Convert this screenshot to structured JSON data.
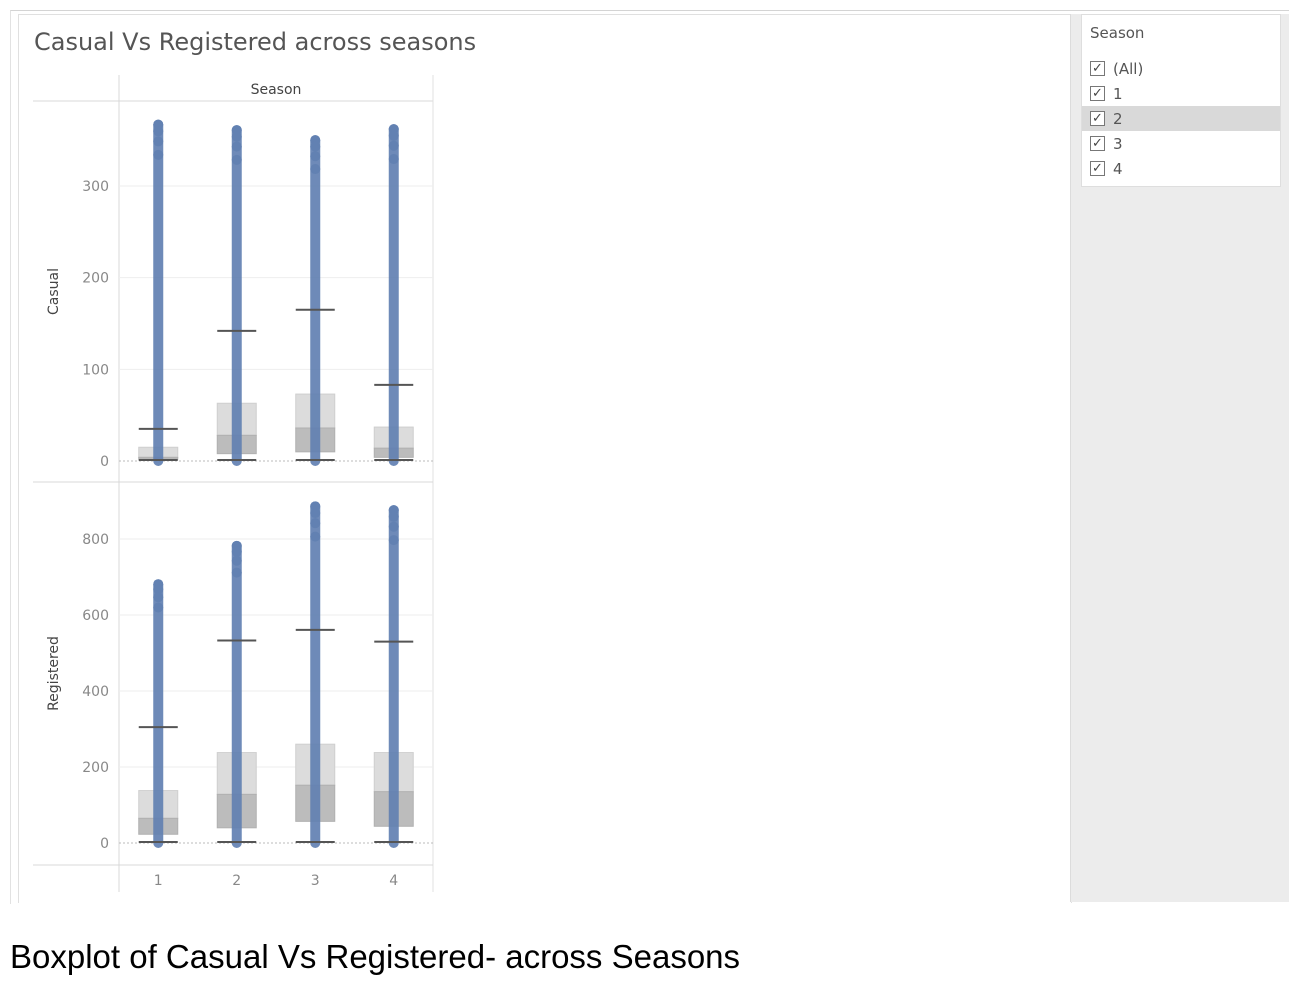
{
  "dashboard": {
    "title": "Casual Vs Registered across seasons"
  },
  "filter": {
    "title": "Season",
    "items": [
      {
        "label": "(All)",
        "checked": true,
        "selected": false
      },
      {
        "label": "1",
        "checked": true,
        "selected": false
      },
      {
        "label": "2",
        "checked": true,
        "selected": true
      },
      {
        "label": "3",
        "checked": true,
        "selected": false
      },
      {
        "label": "4",
        "checked": true,
        "selected": false
      }
    ]
  },
  "caption": "Boxplot of Casual Vs Registered- across Seasons",
  "colors": {
    "point": "#6281b2",
    "box_upper": "#dcdcdc",
    "box_lower": "#bcbcbc",
    "whisker": "#555555",
    "grid": "#eeeeee",
    "axis_text": "#888888"
  },
  "chart_data": [
    {
      "type": "box",
      "column_header": "Season",
      "xlabel": "",
      "ylabel": "Casual",
      "categories": [
        "1",
        "2",
        "3",
        "4"
      ],
      "ylim": [
        0,
        375
      ],
      "yticks": [
        0,
        100,
        200,
        300
      ],
      "grid": true,
      "boxes": [
        {
          "category": "1",
          "whisker_low": 0,
          "q1": 2,
          "median": 4,
          "q3": 15,
          "whisker_high": 35,
          "max": 367
        },
        {
          "category": "2",
          "whisker_low": 0,
          "q1": 8,
          "median": 28,
          "q3": 63,
          "whisker_high": 142,
          "max": 361
        },
        {
          "category": "3",
          "whisker_low": 0,
          "q1": 10,
          "median": 36,
          "q3": 73,
          "whisker_high": 165,
          "max": 350
        },
        {
          "category": "4",
          "whisker_low": 0,
          "q1": 4,
          "median": 14,
          "q3": 37,
          "whisker_high": 83,
          "max": 362
        }
      ]
    },
    {
      "type": "box",
      "column_header": "",
      "xlabel": "",
      "ylabel": "Registered",
      "categories": [
        "1",
        "2",
        "3",
        "4"
      ],
      "ylim": [
        0,
        900
      ],
      "yticks": [
        0,
        200,
        400,
        600,
        800
      ],
      "grid": true,
      "boxes": [
        {
          "category": "1",
          "whisker_low": 0,
          "q1": 23,
          "median": 65,
          "q3": 138,
          "whisker_high": 305,
          "max": 681
        },
        {
          "category": "2",
          "whisker_low": 0,
          "q1": 40,
          "median": 128,
          "q3": 238,
          "whisker_high": 533,
          "max": 782
        },
        {
          "category": "3",
          "whisker_low": 0,
          "q1": 57,
          "median": 152,
          "q3": 260,
          "whisker_high": 561,
          "max": 886
        },
        {
          "category": "4",
          "whisker_low": 0,
          "q1": 44,
          "median": 135,
          "q3": 238,
          "whisker_high": 530,
          "max": 876
        }
      ]
    }
  ]
}
